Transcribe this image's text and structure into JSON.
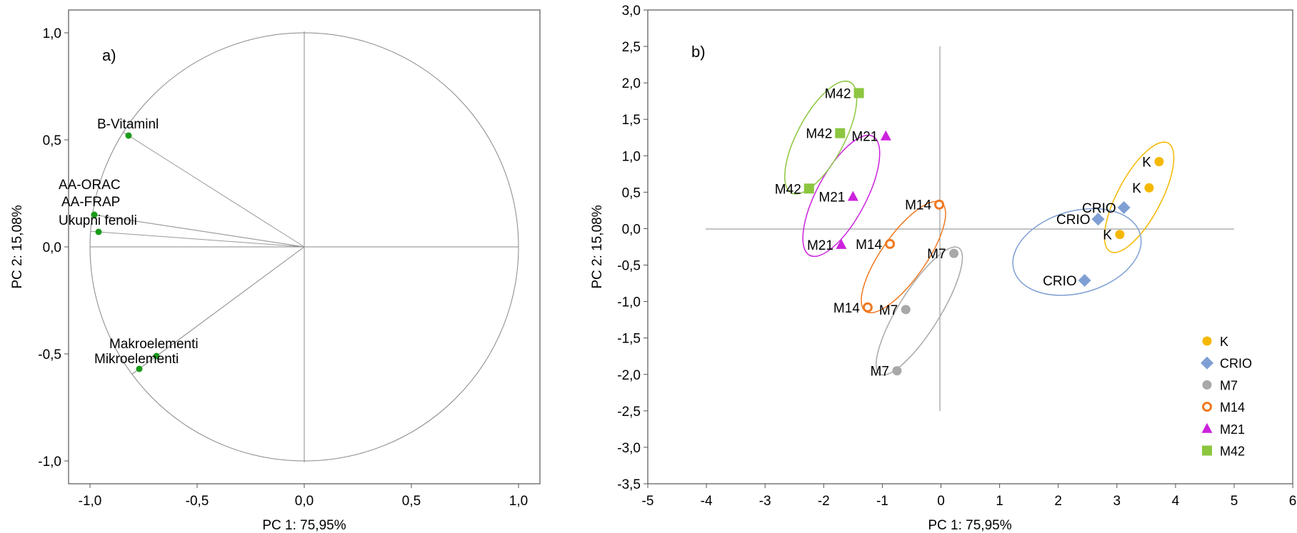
{
  "chart_data": [
    {
      "type": "scatter",
      "panel_label": "a)",
      "xlabel": "PC 1: 75,95%",
      "ylabel": "PC 2: 15,08%",
      "xlim": [
        -1.1,
        1.1
      ],
      "ylim": [
        -1.1,
        1.1
      ],
      "xticks": [
        -1.0,
        -0.5,
        0.0,
        0.5,
        1.0
      ],
      "xtick_labels": [
        "-1,0",
        "-0,5",
        "0,0",
        "0,5",
        "1,0"
      ],
      "yticks": [
        1.0,
        0.5,
        0.0,
        -0.5,
        -1.0
      ],
      "ytick_labels": [
        "1,0",
        "0,5",
        "0,0",
        "-0,5",
        "-1,0"
      ],
      "unit_circle": true,
      "point_color": "#1a9a1a",
      "points": [
        {
          "label": "B-Vitaminl",
          "x": -0.82,
          "y": 0.52
        },
        {
          "label": "AA-ORAC",
          "x": -0.98,
          "y": 0.15
        },
        {
          "label": "AA-FRAP",
          "x": -0.98,
          "y": 0.15
        },
        {
          "label": "Ukupni fenoli",
          "x": -0.96,
          "y": 0.07
        },
        {
          "label": "Makroelementi",
          "x": -0.69,
          "y": -0.51
        },
        {
          "label": "Mikroelementi",
          "x": -0.77,
          "y": -0.57
        }
      ]
    },
    {
      "type": "scatter",
      "panel_label": "b)",
      "xlabel": "PC 1: 75,95%",
      "ylabel": "PC 2: 15,08%",
      "xlim": [
        -5,
        6
      ],
      "ylim": [
        -3.5,
        3.0
      ],
      "xticks": [
        -5,
        -4,
        -3,
        -2,
        -1,
        0,
        1,
        2,
        3,
        4,
        5,
        6
      ],
      "xtick_labels": [
        "-5",
        "-4",
        "-3",
        "-2",
        "-1",
        "0",
        "1",
        "2",
        "3",
        "4",
        "5",
        "6"
      ],
      "yticks": [
        3.0,
        2.5,
        2.0,
        1.5,
        1.0,
        0.5,
        0.0,
        -0.5,
        -1.0,
        -1.5,
        -2.0,
        -2.5,
        -3.0,
        -3.5
      ],
      "ytick_labels": [
        "3,0",
        "2,5",
        "2,0",
        "1,5",
        "1,0",
        "0,5",
        "0,0",
        "-0,5",
        "-1,0",
        "-1,5",
        "-2,0",
        "-2,5",
        "-3,0",
        "-3,5"
      ],
      "legend_position": "bottom-right",
      "series": [
        {
          "name": "K",
          "marker": "circle",
          "color": "#f5b800",
          "points": [
            {
              "x": 3.72,
              "y": 0.92,
              "label": "K"
            },
            {
              "x": 3.55,
              "y": 0.56,
              "label": "K"
            },
            {
              "x": 3.05,
              "y": -0.08,
              "label": "K"
            }
          ],
          "ellipse": {
            "cx": 3.38,
            "cy": 0.43,
            "rx": 1.05,
            "ry": 0.37,
            "angle_deg": 62
          }
        },
        {
          "name": "CRIO",
          "marker": "diamond",
          "color": "#7f9fd4",
          "points": [
            {
              "x": 3.12,
              "y": 0.29,
              "label": "CRIO"
            },
            {
              "x": 2.68,
              "y": 0.13,
              "label": "CRIO"
            },
            {
              "x": 2.45,
              "y": -0.71,
              "label": "CRIO"
            }
          ],
          "ellipse": {
            "cx": 2.32,
            "cy": -0.32,
            "rx": 1.12,
            "ry": 0.7,
            "angle_deg": 16
          }
        },
        {
          "name": "M7",
          "marker": "circle",
          "color": "#a8a8a8",
          "points": [
            {
              "x": 0.22,
              "y": -0.34,
              "label": "M7"
            },
            {
              "x": -0.6,
              "y": -1.11,
              "label": "M7"
            },
            {
              "x": -0.75,
              "y": -1.95,
              "label": "M7"
            }
          ],
          "ellipse": {
            "cx": -0.37,
            "cy": -1.13,
            "rx": 1.27,
            "ry": 0.35,
            "angle_deg": 58
          }
        },
        {
          "name": "M14",
          "marker": "open-circle",
          "color": "#f07820",
          "points": [
            {
              "x": -0.03,
              "y": 0.33,
              "label": "M14"
            },
            {
              "x": -0.87,
              "y": -0.21,
              "label": "M14"
            },
            {
              "x": -1.25,
              "y": -1.08,
              "label": "M14"
            }
          ],
          "ellipse": {
            "cx": -0.64,
            "cy": -0.39,
            "rx": 1.13,
            "ry": 0.38,
            "angle_deg": 55
          }
        },
        {
          "name": "M21",
          "marker": "triangle",
          "color": "#cc22dd",
          "points": [
            {
              "x": -0.94,
              "y": 1.27,
              "label": "M21"
            },
            {
              "x": -1.5,
              "y": 0.44,
              "label": "M21"
            },
            {
              "x": -1.7,
              "y": -0.22,
              "label": "M21"
            }
          ],
          "ellipse": {
            "cx": -1.7,
            "cy": 0.45,
            "rx": 1.15,
            "ry": 0.42,
            "angle_deg": 62
          }
        },
        {
          "name": "M42",
          "marker": "square",
          "color": "#8cc63f",
          "points": [
            {
              "x": -1.4,
              "y": 1.86,
              "label": "M42"
            },
            {
              "x": -1.72,
              "y": 1.31,
              "label": "M42"
            },
            {
              "x": -2.25,
              "y": 0.55,
              "label": "M42"
            }
          ],
          "ellipse": {
            "cx": -2.05,
            "cy": 1.25,
            "rx": 1.07,
            "ry": 0.4,
            "angle_deg": 62
          }
        }
      ]
    }
  ]
}
